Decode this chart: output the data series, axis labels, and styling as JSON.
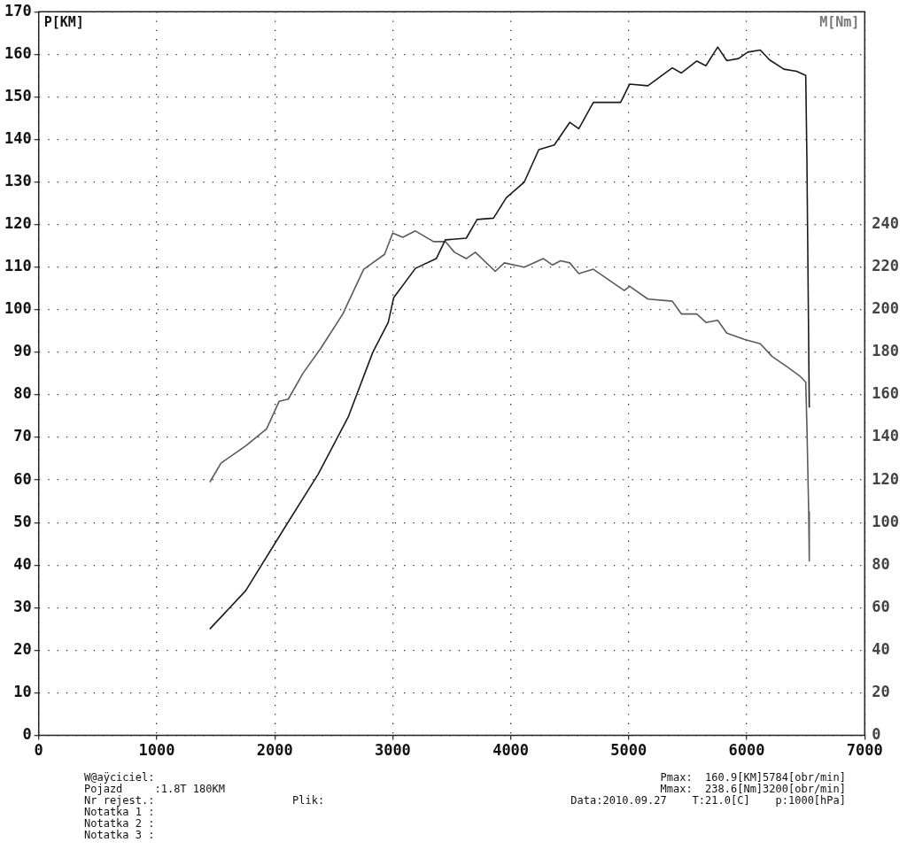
{
  "chart_data": {
    "type": "line",
    "ylabel": "P[KM]",
    "y2label": "M[Nm]",
    "xlim": [
      0,
      7000
    ],
    "xticks": [
      0,
      1000,
      2000,
      3000,
      4000,
      5000,
      6000,
      7000
    ],
    "ylim": [
      0,
      170
    ],
    "yticks": [
      0,
      10,
      20,
      30,
      40,
      50,
      60,
      70,
      80,
      90,
      100,
      110,
      120,
      130,
      140,
      150,
      160,
      170
    ],
    "y2lim": [
      0,
      340
    ],
    "y2ticks": [
      0,
      20,
      40,
      60,
      80,
      100,
      120,
      140,
      160,
      180,
      200,
      220,
      240
    ],
    "grid": true,
    "legend": false,
    "marker": "none",
    "line_style": "solid",
    "series": [
      {
        "color": "#1a1a1a",
        "x": [
          1450,
          1754,
          2062,
          2369,
          2623,
          2831,
          2962,
          3008,
          3192,
          3369,
          3446,
          3623,
          3715,
          3854,
          3962,
          4115,
          4238,
          4369,
          4500,
          4577,
          4700,
          4931,
          5008,
          5162,
          5369,
          5446,
          5577,
          5654,
          5754,
          5831,
          5931,
          6008,
          6115,
          6192,
          6315,
          6423,
          6500,
          6510,
          6530
        ],
        "values": [
          25,
          34,
          47.8,
          61.4,
          74.8,
          90,
          97,
          102.8,
          109.7,
          112,
          116.4,
          116.8,
          121.2,
          121.5,
          126.3,
          130,
          137.6,
          138.7,
          144,
          142.5,
          148.7,
          148.7,
          153,
          152.6,
          156.8,
          155.6,
          158.4,
          157.3,
          161.7,
          158.5,
          159,
          160.5,
          161,
          158.7,
          156.5,
          156,
          155,
          135,
          77
        ]
      },
      {
        "color": "#5a5a5a",
        "axis": "y2",
        "x": [
          1450,
          1546,
          1754,
          1931,
          2038,
          2115,
          2238,
          2392,
          2577,
          2754,
          2931,
          3000,
          3085,
          3192,
          3346,
          3446,
          3523,
          3623,
          3700,
          3869,
          3946,
          4115,
          4277,
          4354,
          4423,
          4500,
          4577,
          4700,
          4962,
          5008,
          5162,
          5369,
          5446,
          5577,
          5654,
          5754,
          5831,
          5985,
          6115,
          6215,
          6346,
          6446,
          6500,
          6510,
          6525,
          6530
        ],
        "values": [
          119,
          128,
          136,
          144,
          157,
          158,
          170,
          182,
          198,
          219,
          226,
          236,
          234,
          237,
          232,
          232,
          227,
          224,
          227,
          218,
          222,
          220,
          224,
          221,
          223,
          222,
          217,
          219,
          209,
          211,
          205,
          204,
          198,
          198,
          194,
          195,
          189,
          186,
          184,
          178,
          173,
          169,
          166,
          145,
          105,
          82
        ]
      }
    ],
    "annotations": [
      "W@aÿciciel:",
      "Pojazd     :1.8T 180KM",
      "Nr rejest.:",
      "Notatka 1 :",
      "Notatka 2 :",
      "Notatka 3 :",
      "Plik:",
      "Pmax:  160.9[KM]5784[obr/min]",
      "Mmax:  238.6[Nm]3200[obr/min]",
      "Data:2010.09.27    T:21.0[C]    p:1000[hPa]"
    ]
  }
}
